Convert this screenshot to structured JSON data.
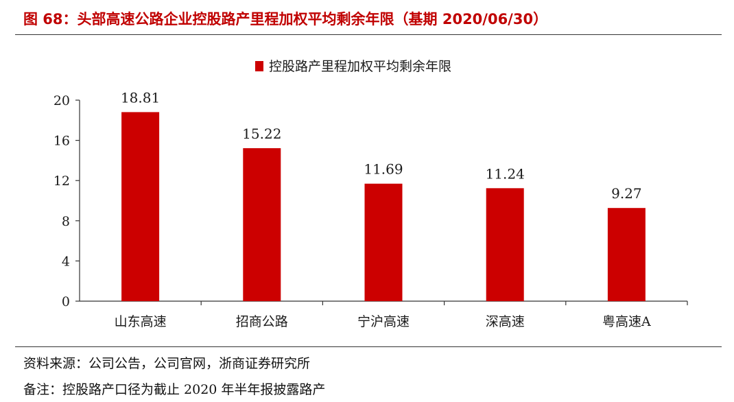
{
  "figure_title": "图 68：头部高速公路企业控股路产里程加权平均剩余年限（基期 2020/06/30）",
  "chart_data": {
    "type": "bar",
    "title": "",
    "categories": [
      "山东高速",
      "招商公路",
      "宁沪高速",
      "深高速",
      "粤高速A"
    ],
    "series": [
      {
        "name": "控股路产里程加权平均剩余年限",
        "values": [
          18.81,
          15.22,
          11.69,
          11.24,
          9.27
        ],
        "color": "#cc0000"
      }
    ],
    "data_labels": [
      "18.81",
      "15.22",
      "11.69",
      "11.24",
      "9.27"
    ],
    "y_ticks": [
      "0",
      "4",
      "8",
      "12",
      "16",
      "20"
    ],
    "ylim": [
      0,
      20
    ],
    "xlabel": "",
    "ylabel": "",
    "grid": false,
    "legend_position": "top-center"
  },
  "source_note": "资料来源：公司公告，公司官网，浙商证券研究所",
  "remark_note": "备注：控股路产口径为截止 2020 年半年报披露路产"
}
